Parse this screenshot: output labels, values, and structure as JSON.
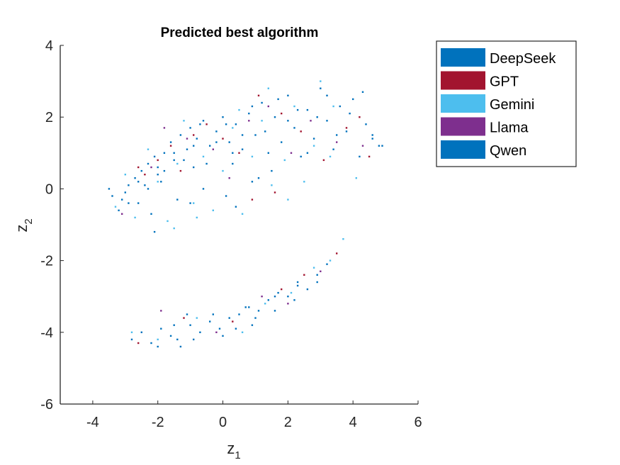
{
  "chart_data": {
    "type": "scatter",
    "title": "Predicted best algorithm",
    "xlabel": {
      "base": "z",
      "sub": "1"
    },
    "ylabel": {
      "base": "z",
      "sub": "2"
    },
    "xlim": [
      -5,
      6
    ],
    "ylim": [
      -6,
      4
    ],
    "xticks": [
      -4,
      -2,
      0,
      2,
      4,
      6
    ],
    "yticks": [
      -6,
      -4,
      -2,
      0,
      2,
      4
    ],
    "xtick_labels": [
      "-4",
      "-2",
      "0",
      "2",
      "4",
      "6"
    ],
    "ytick_labels": [
      "-6",
      "-4",
      "-2",
      "0",
      "2",
      "4"
    ],
    "grid": false,
    "legend_position": "outside-top-right",
    "series": [
      {
        "name": "DeepSeek",
        "color": "#0072BD",
        "points": [
          [
            -3.4,
            -0.2
          ],
          [
            -3.2,
            -0.6
          ],
          [
            -3.0,
            -0.1
          ],
          [
            -2.9,
            0.1
          ],
          [
            -2.7,
            0.3
          ],
          [
            -2.5,
            0.5
          ],
          [
            -2.4,
            0.1
          ],
          [
            -2.3,
            0.7
          ],
          [
            -2.1,
            0.9
          ],
          [
            -2.0,
            0.4
          ],
          [
            -1.8,
            1.0
          ],
          [
            -1.6,
            1.3
          ],
          [
            -1.5,
            0.8
          ],
          [
            -1.3,
            1.5
          ],
          [
            -1.1,
            1.1
          ],
          [
            -1.0,
            1.7
          ],
          [
            -0.8,
            1.4
          ],
          [
            -0.6,
            1.9
          ],
          [
            -0.4,
            1.2
          ],
          [
            -0.2,
            1.6
          ],
          [
            0.0,
            2.0
          ],
          [
            0.2,
            1.3
          ],
          [
            0.4,
            1.8
          ],
          [
            0.6,
            1.1
          ],
          [
            0.8,
            2.1
          ],
          [
            1.0,
            1.5
          ],
          [
            1.2,
            2.4
          ],
          [
            1.4,
            1.0
          ],
          [
            1.6,
            2.0
          ],
          [
            1.8,
            1.3
          ],
          [
            2.0,
            2.6
          ],
          [
            2.2,
            1.7
          ],
          [
            2.4,
            0.9
          ],
          [
            2.6,
            2.2
          ],
          [
            2.8,
            1.4
          ],
          [
            3.0,
            2.8
          ],
          [
            3.2,
            1.9
          ],
          [
            3.4,
            1.1
          ],
          [
            3.6,
            2.3
          ],
          [
            3.8,
            1.6
          ],
          [
            4.0,
            2.5
          ],
          [
            4.2,
            0.9
          ],
          [
            4.4,
            1.8
          ],
          [
            4.6,
            1.4
          ],
          [
            4.8,
            1.2
          ],
          [
            -2.6,
            -0.4
          ],
          [
            -2.2,
            -0.7
          ],
          [
            -1.4,
            -0.3
          ],
          [
            -0.6,
            0.0
          ],
          [
            0.1,
            -0.2
          ],
          [
            0.9,
            0.2
          ],
          [
            1.5,
            0.5
          ],
          [
            -1.9,
            0.2
          ],
          [
            -0.9,
            0.6
          ],
          [
            0.3,
            0.7
          ],
          [
            -2.8,
            -4.2
          ],
          [
            -2.5,
            -4.0
          ],
          [
            -2.2,
            -4.3
          ],
          [
            -1.9,
            -3.9
          ],
          [
            -1.6,
            -4.1
          ],
          [
            -1.3,
            -4.4
          ],
          [
            -1.0,
            -3.8
          ],
          [
            -0.7,
            -4.0
          ],
          [
            -0.4,
            -3.7
          ],
          [
            -0.1,
            -3.9
          ],
          [
            0.2,
            -3.6
          ],
          [
            0.5,
            -3.5
          ],
          [
            0.8,
            -3.3
          ],
          [
            1.1,
            -3.4
          ],
          [
            1.4,
            -3.1
          ],
          [
            1.7,
            -2.9
          ],
          [
            2.0,
            -3.0
          ],
          [
            2.3,
            -2.6
          ],
          [
            2.6,
            -2.8
          ],
          [
            2.9,
            -2.4
          ],
          [
            3.2,
            -2.1
          ],
          [
            -1.1,
            -3.5
          ],
          [
            0.0,
            -4.1
          ],
          [
            0.9,
            -3.8
          ],
          [
            1.6,
            -3.4
          ],
          [
            2.2,
            -3.1
          ]
        ]
      },
      {
        "name": "GPT",
        "color": "#A2142F",
        "points": [
          [
            -2.6,
            0.6
          ],
          [
            -2.4,
            0.4
          ],
          [
            -2.0,
            0.8
          ],
          [
            -1.6,
            1.2
          ],
          [
            -1.3,
            0.5
          ],
          [
            -0.9,
            1.5
          ],
          [
            -0.5,
            1.8
          ],
          [
            0.0,
            1.4
          ],
          [
            0.5,
            1.0
          ],
          [
            1.1,
            2.6
          ],
          [
            1.8,
            2.1
          ],
          [
            2.4,
            1.6
          ],
          [
            3.1,
            0.8
          ],
          [
            3.8,
            1.7
          ],
          [
            4.2,
            2.0
          ],
          [
            4.5,
            0.9
          ],
          [
            0.9,
            -0.3
          ],
          [
            1.6,
            -0.1
          ],
          [
            -2.6,
            -4.3
          ],
          [
            -1.2,
            -3.6
          ],
          [
            0.3,
            -3.7
          ],
          [
            1.8,
            -2.8
          ],
          [
            2.5,
            -2.4
          ],
          [
            3.5,
            -1.8
          ]
        ]
      },
      {
        "name": "Gemini",
        "color": "#4DBEEE",
        "points": [
          [
            -3.3,
            -0.5
          ],
          [
            -3.0,
            0.4
          ],
          [
            -2.7,
            -0.8
          ],
          [
            -2.3,
            1.1
          ],
          [
            -2.0,
            0.2
          ],
          [
            -1.7,
            -0.9
          ],
          [
            -1.4,
            0.7
          ],
          [
            -1.2,
            1.9
          ],
          [
            -0.9,
            -0.4
          ],
          [
            -0.6,
            0.9
          ],
          [
            -0.3,
            -0.6
          ],
          [
            0.0,
            0.5
          ],
          [
            0.3,
            1.7
          ],
          [
            0.6,
            -0.7
          ],
          [
            0.9,
            0.9
          ],
          [
            1.2,
            1.9
          ],
          [
            1.5,
            0.1
          ],
          [
            1.9,
            0.8
          ],
          [
            2.2,
            2.3
          ],
          [
            2.5,
            0.2
          ],
          [
            2.8,
            1.2
          ],
          [
            3.0,
            3.0
          ],
          [
            3.4,
            2.3
          ],
          [
            3.7,
            -1.4
          ],
          [
            4.1,
            0.3
          ],
          [
            3.3,
            0.9
          ],
          [
            2.0,
            -0.3
          ],
          [
            -1.5,
            -1.1
          ],
          [
            -0.8,
            -0.8
          ],
          [
            0.5,
            2.2
          ],
          [
            1.4,
            2.8
          ],
          [
            -2.8,
            -4.0
          ],
          [
            -2.0,
            -4.2
          ],
          [
            -0.8,
            -3.6
          ],
          [
            0.6,
            -4.0
          ],
          [
            1.3,
            -3.2
          ],
          [
            2.1,
            -2.9
          ],
          [
            2.8,
            -2.2
          ],
          [
            3.3,
            -2.0
          ]
        ]
      },
      {
        "name": "Llama",
        "color": "#7E2F8E",
        "points": [
          [
            -3.1,
            -0.7
          ],
          [
            -2.2,
            0.6
          ],
          [
            -1.8,
            1.7
          ],
          [
            -1.1,
            1.4
          ],
          [
            -0.3,
            1.1
          ],
          [
            0.2,
            0.3
          ],
          [
            0.8,
            1.9
          ],
          [
            1.4,
            2.3
          ],
          [
            2.1,
            1.0
          ],
          [
            2.7,
            1.9
          ],
          [
            3.5,
            1.3
          ],
          [
            4.3,
            1.2
          ],
          [
            -1.9,
            -3.4
          ],
          [
            -0.2,
            -4.0
          ],
          [
            1.2,
            -3.0
          ],
          [
            2.0,
            -3.2
          ],
          [
            3.0,
            -2.3
          ]
        ]
      },
      {
        "name": "Qwen",
        "color": "#0072BD",
        "points": [
          [
            -3.5,
            0.0
          ],
          [
            -3.1,
            -0.3
          ],
          [
            -2.9,
            -0.4
          ],
          [
            -2.6,
            0.2
          ],
          [
            -2.3,
            0.0
          ],
          [
            -2.0,
            0.6
          ],
          [
            -1.8,
            0.5
          ],
          [
            -1.5,
            1.0
          ],
          [
            -1.2,
            0.8
          ],
          [
            -0.9,
            1.2
          ],
          [
            -0.7,
            1.8
          ],
          [
            -0.5,
            0.7
          ],
          [
            -0.2,
            1.3
          ],
          [
            0.1,
            1.8
          ],
          [
            0.3,
            1.0
          ],
          [
            0.6,
            1.5
          ],
          [
            0.9,
            2.3
          ],
          [
            1.3,
            1.6
          ],
          [
            1.7,
            2.5
          ],
          [
            2.0,
            1.9
          ],
          [
            2.3,
            2.2
          ],
          [
            2.6,
            1.0
          ],
          [
            2.9,
            2.0
          ],
          [
            3.2,
            2.6
          ],
          [
            3.5,
            1.5
          ],
          [
            3.9,
            2.1
          ],
          [
            4.3,
            2.7
          ],
          [
            4.6,
            1.5
          ],
          [
            4.9,
            1.2
          ],
          [
            -2.1,
            -1.2
          ],
          [
            -1.0,
            -0.4
          ],
          [
            0.4,
            -0.5
          ],
          [
            1.1,
            0.3
          ],
          [
            -2.0,
            -4.4
          ],
          [
            -1.5,
            -3.8
          ],
          [
            -0.9,
            -4.2
          ],
          [
            -0.3,
            -3.5
          ],
          [
            0.4,
            -3.9
          ],
          [
            1.0,
            -3.6
          ],
          [
            1.6,
            -3.0
          ],
          [
            2.3,
            -2.7
          ],
          [
            2.9,
            -2.6
          ],
          [
            -1.4,
            -4.2
          ],
          [
            0.7,
            -3.3
          ]
        ]
      }
    ],
    "legend": [
      "DeepSeek",
      "GPT",
      "Gemini",
      "Llama",
      "Qwen"
    ]
  }
}
